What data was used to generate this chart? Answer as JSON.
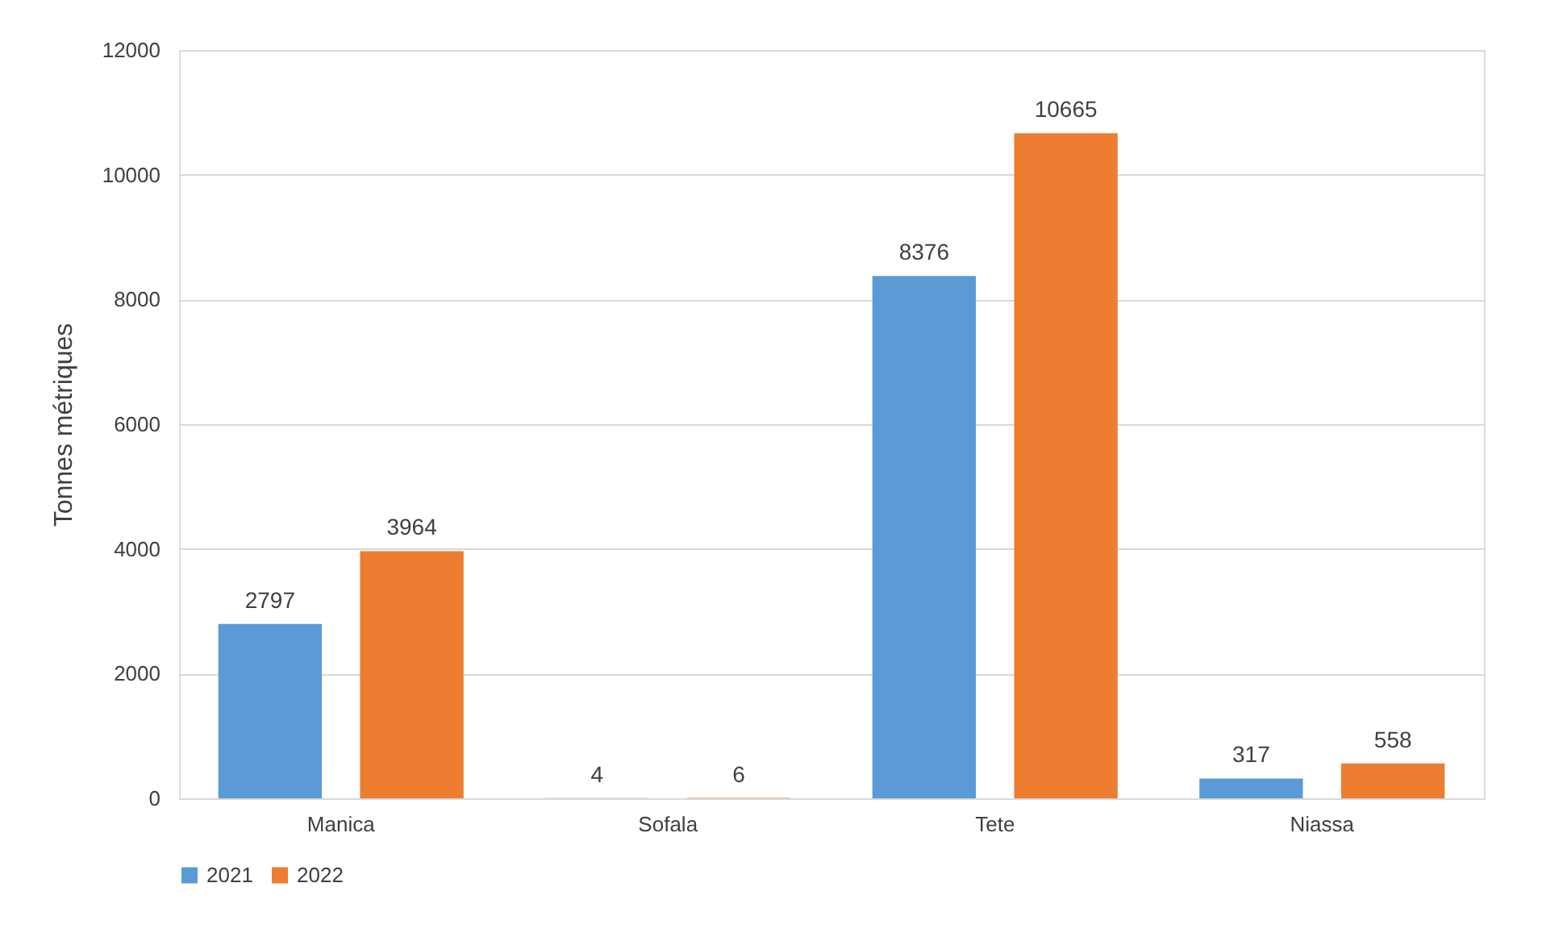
{
  "chart_data": {
    "type": "bar",
    "ylabel": "Tonnes métriques",
    "categories": [
      "Manica",
      "Sofala",
      "Tete",
      "Niassa"
    ],
    "series": [
      {
        "name": "2021",
        "color": "#5b9bd5",
        "values": [
          2797,
          4,
          8376,
          317
        ]
      },
      {
        "name": "2022",
        "color": "#ed7d31",
        "values": [
          3964,
          6,
          10665,
          558
        ]
      }
    ],
    "ylim": [
      0,
      12000
    ],
    "yticks": [
      0,
      2000,
      4000,
      6000,
      8000,
      10000,
      12000
    ],
    "grid": "y",
    "legend": "bottom",
    "data_labels": true
  }
}
